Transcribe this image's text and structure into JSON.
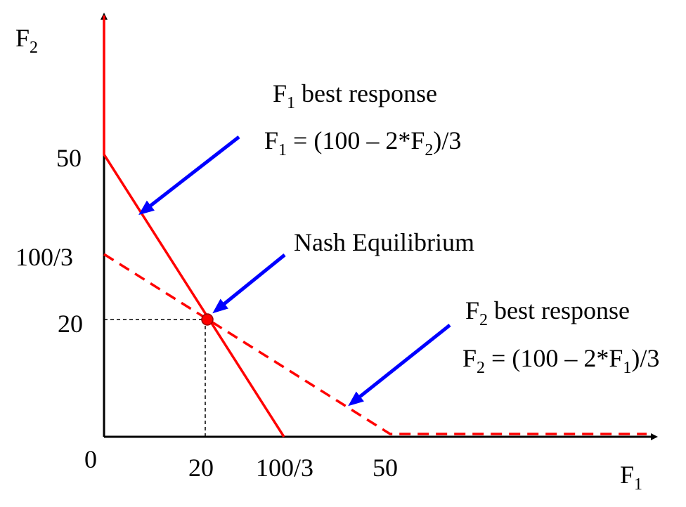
{
  "axes": {
    "y_label": "F",
    "y_label_sub": "2",
    "x_label": "F",
    "x_label_sub": "1",
    "origin_label": "0",
    "y_ticks": [
      "50",
      "100/3",
      "20"
    ],
    "x_ticks": [
      "20",
      "100/3",
      "50"
    ]
  },
  "annotations": {
    "f1_title_main": "F",
    "f1_title_sub": "1",
    "f1_title_rest": " best response",
    "f1_eq_a": "F",
    "f1_eq_a_sub": "1",
    "f1_eq_b": " = (100 – 2*F",
    "f1_eq_b_sub": "2",
    "f1_eq_c": ")/3",
    "nash": "Nash Equilibrium",
    "f2_title_main": "F",
    "f2_title_sub": "2",
    "f2_title_rest": " best response",
    "f2_eq_a": "F",
    "f2_eq_a_sub": "2",
    "f2_eq_b": " = (100 – 2*F",
    "f2_eq_b_sub": "1",
    "f2_eq_c": ")/3"
  },
  "colors": {
    "best_response": "#ff0000",
    "arrow": "#0000ff",
    "axis": "#000000",
    "guide": "#000000"
  },
  "diagram": {
    "f1_best_response": [
      [
        0,
        60
      ],
      [
        0,
        50
      ],
      [
        33.33,
        0
      ]
    ],
    "f2_best_response": [
      [
        0,
        33.33
      ],
      [
        50,
        0
      ],
      [
        60,
        0
      ]
    ],
    "equilibrium": [
      20,
      20
    ]
  }
}
